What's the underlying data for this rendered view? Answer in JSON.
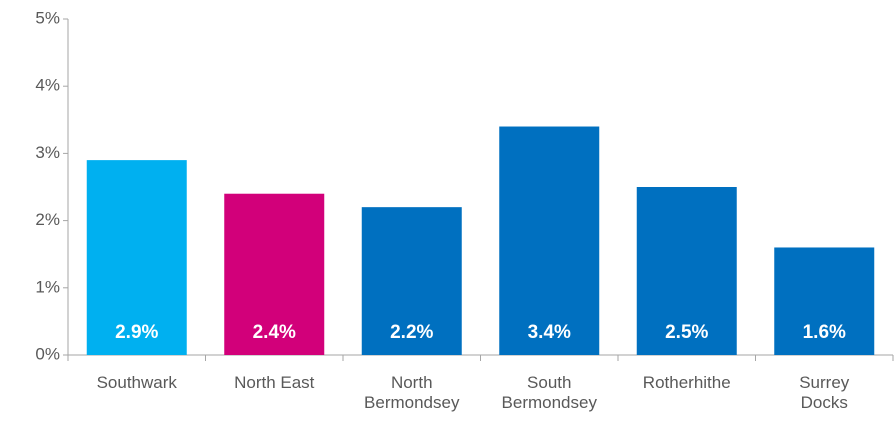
{
  "chart_data": {
    "type": "bar",
    "categories": [
      "Southwark",
      "North East",
      "North Bermondsey",
      "South Bermondsey",
      "Rotherhithe",
      "Surrey Docks"
    ],
    "values": [
      2.9,
      2.4,
      2.2,
      3.4,
      2.5,
      1.6
    ],
    "value_labels": [
      "2.9%",
      "2.4%",
      "2.2%",
      "3.4%",
      "2.5%",
      "1.6%"
    ],
    "colors": [
      "#00b0f0",
      "#d2007a",
      "#0070c0",
      "#0070c0",
      "#0070c0",
      "#0070c0"
    ],
    "ylim": [
      0,
      5
    ],
    "yticks": [
      {
        "value": 0,
        "label": "0%"
      },
      {
        "value": 1,
        "label": "1%"
      },
      {
        "value": 2,
        "label": "2%"
      },
      {
        "value": 3,
        "label": "3%"
      },
      {
        "value": 4,
        "label": "4%"
      },
      {
        "value": 5,
        "label": "5%"
      }
    ],
    "grid": false
  }
}
